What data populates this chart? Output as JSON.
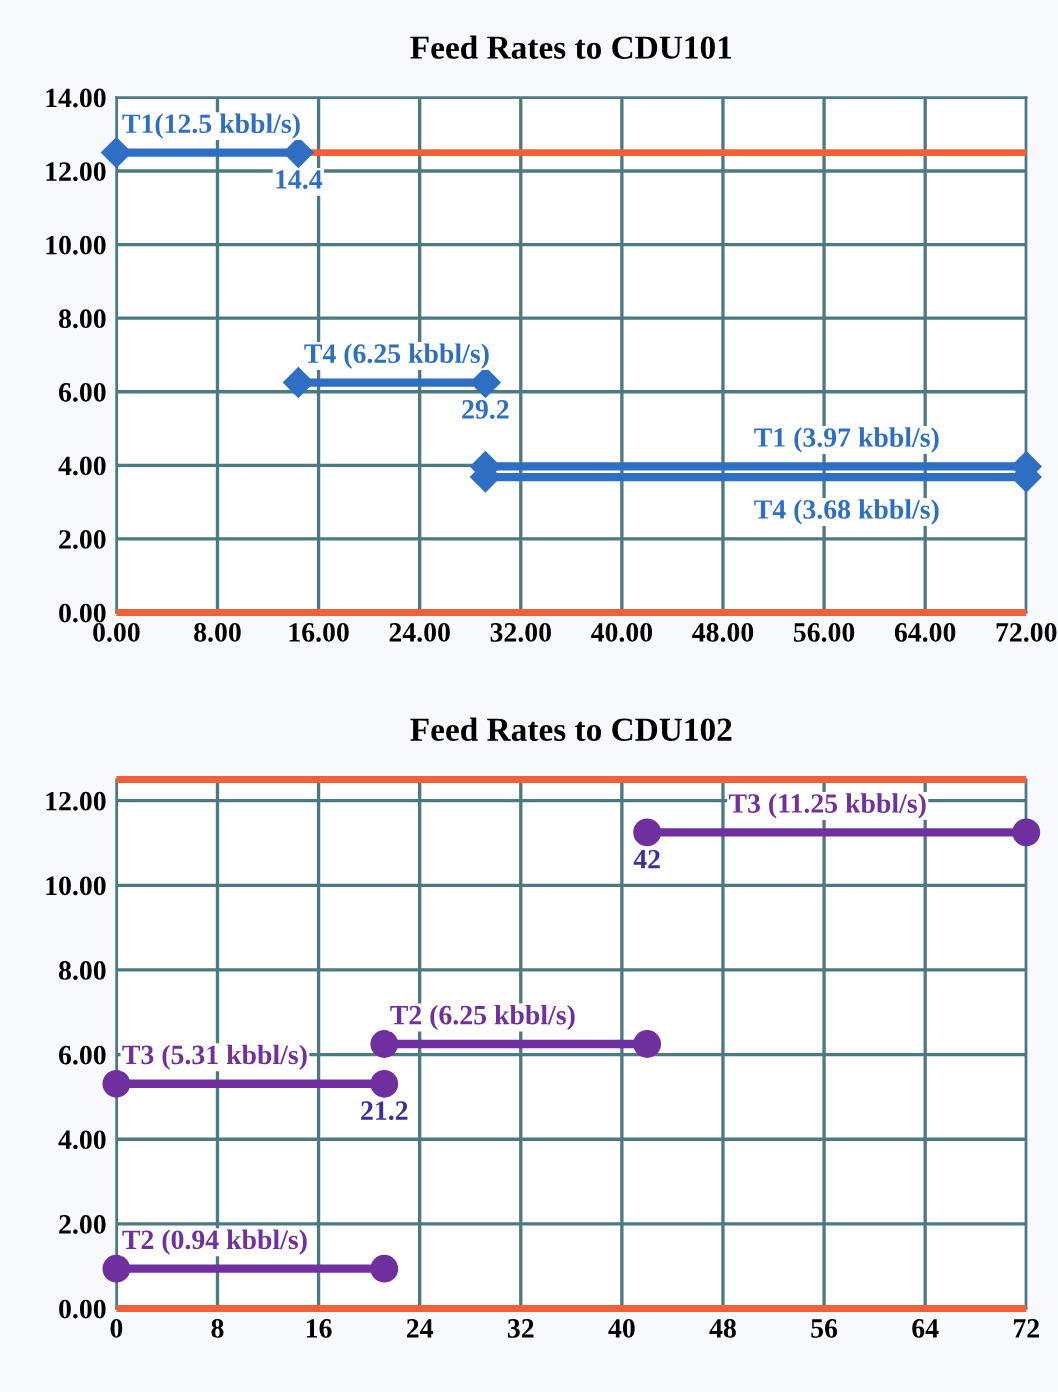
{
  "chart_data": [
    {
      "type": "line",
      "title": "Feed Rates to CDU101",
      "marker": "diamond",
      "grid": true,
      "xlim": [
        0,
        72
      ],
      "ylim": [
        0,
        14
      ],
      "xticks": [
        {
          "value": 0,
          "label": "0.00"
        },
        {
          "value": 8,
          "label": "8.00"
        },
        {
          "value": 16,
          "label": "16.00"
        },
        {
          "value": 24,
          "label": "24.00"
        },
        {
          "value": 32,
          "label": "32.00"
        },
        {
          "value": 40,
          "label": "40.00"
        },
        {
          "value": 48,
          "label": "48.00"
        },
        {
          "value": 56,
          "label": "56.00"
        },
        {
          "value": 64,
          "label": "64.00"
        },
        {
          "value": 72,
          "label": "72.00"
        }
      ],
      "yticks": [
        {
          "value": 0,
          "label": "0.00"
        },
        {
          "value": 2,
          "label": "2.00"
        },
        {
          "value": 4,
          "label": "4.00"
        },
        {
          "value": 6,
          "label": "6.00"
        },
        {
          "value": 8,
          "label": "8.00"
        },
        {
          "value": 10,
          "label": "10.00"
        },
        {
          "value": 12,
          "label": "12.00"
        },
        {
          "value": 14,
          "label": "14.00"
        }
      ],
      "series": [
        {
          "color": "#2e6fc4",
          "x": [
            0,
            14.4
          ],
          "values": [
            12.5,
            12.5
          ]
        },
        {
          "color": "#2e6fc4",
          "x": [
            14.4,
            29.2
          ],
          "values": [
            6.25,
            6.25
          ]
        },
        {
          "color": "#2e6fc4",
          "x": [
            29.2,
            72
          ],
          "values": [
            3.97,
            3.97
          ]
        },
        {
          "color": "#2e6fc4",
          "x": [
            29.2,
            72
          ],
          "values": [
            3.68,
            3.68
          ]
        }
      ],
      "ref_lines": [
        {
          "axis": "y",
          "value": 12.5,
          "color": "#f0603a"
        },
        {
          "axis": "y",
          "value": 0,
          "color": "#f0603a"
        }
      ],
      "annotations": [
        {
          "text": "T1(12.5 kbbl/s)",
          "x": 0,
          "y": 12.5
        },
        {
          "text": "14.4",
          "x": 14.4,
          "y": 12.5
        },
        {
          "text": "T4 (6.25 kbbl/s)",
          "x": 14.4,
          "y": 6.25
        },
        {
          "text": "29.2",
          "x": 29.2,
          "y": 6.25
        },
        {
          "text": "T1 (3.97 kbbl/s)",
          "x": 50,
          "y": 3.97
        },
        {
          "text": "T4 (3.68 kbbl/s)",
          "x": 50,
          "y": 3.68
        }
      ]
    },
    {
      "type": "line",
      "title": "Feed Rates to CDU102",
      "marker": "circle",
      "grid": true,
      "xlim": [
        0,
        72
      ],
      "ylim": [
        0,
        12.5
      ],
      "xticks": [
        0,
        8,
        16,
        24,
        32,
        40,
        48,
        56,
        64,
        72
      ],
      "yticks": [
        {
          "value": 0,
          "label": "0.00"
        },
        {
          "value": 2,
          "label": "2.00"
        },
        {
          "value": 4,
          "label": "4.00"
        },
        {
          "value": 6,
          "label": "6.00"
        },
        {
          "value": 8,
          "label": "8.00"
        },
        {
          "value": 10,
          "label": "10.00"
        },
        {
          "value": 12,
          "label": "12.00"
        }
      ],
      "series": [
        {
          "color": "#7030a0",
          "x": [
            0,
            21.2
          ],
          "values": [
            5.31,
            5.31
          ]
        },
        {
          "color": "#7030a0",
          "x": [
            0,
            21.2
          ],
          "values": [
            0.94,
            0.94
          ]
        },
        {
          "color": "#7030a0",
          "x": [
            21.2,
            42
          ],
          "values": [
            6.25,
            6.25
          ]
        },
        {
          "color": "#7030a0",
          "x": [
            42,
            72
          ],
          "values": [
            11.25,
            11.25
          ]
        }
      ],
      "ref_lines": [
        {
          "axis": "y",
          "value": 12.5,
          "color": "#f0603a"
        },
        {
          "axis": "y",
          "value": 0,
          "color": "#f0603a"
        }
      ],
      "annotations": [
        {
          "text": "T3 (5.31 kbbl/s)",
          "x": 0,
          "y": 5.31
        },
        {
          "text": "21.2",
          "x": 21.2,
          "y": 5.31
        },
        {
          "text": "T2 (0.94 kbbl/s)",
          "x": 0,
          "y": 0.94
        },
        {
          "text": "T2 (6.25 kbbl/s)",
          "x": 21.2,
          "y": 6.25
        },
        {
          "text": "42",
          "x": 42,
          "y": 11.25
        },
        {
          "text": "T3 (11.25 kbbl/s)",
          "x": 48,
          "y": 11.25
        }
      ]
    }
  ]
}
